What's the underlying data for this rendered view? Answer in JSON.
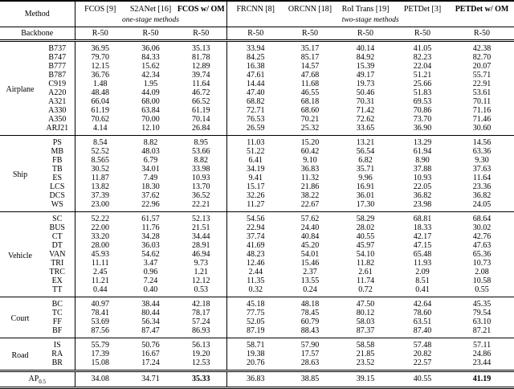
{
  "table": {
    "header": {
      "method_label": "Method",
      "backbone_label": "Backbone",
      "columns": [
        {
          "label": "FCOS [9]",
          "bold": false
        },
        {
          "label": "S2ANet [16]",
          "bold": false
        },
        {
          "label": "FCOS w/ OM",
          "bold": true
        },
        {
          "label": "FRCNN [8]",
          "bold": false
        },
        {
          "label": "ORCNN [18]",
          "bold": false
        },
        {
          "label": "RoI Trans [19]",
          "bold": false
        },
        {
          "label": "PETDet [3]",
          "bold": false
        },
        {
          "label": "PETDet w/ OM",
          "bold": true
        }
      ],
      "stage_notes": [
        {
          "label": "one-stage methods",
          "span": 3
        },
        {
          "label": "two-stage methods",
          "span": 5
        }
      ],
      "backbones": [
        "R-50",
        "R-50",
        "R-50",
        "R-50",
        "R-50",
        "R-50",
        "R-50",
        "R-50"
      ]
    },
    "sections": [
      {
        "group": "Airplane",
        "rows": [
          {
            "class": "B737",
            "values": [
              "36.95",
              "36.06",
              "35.13",
              "33.94",
              "35.17",
              "40.14",
              "41.05",
              "42.38"
            ]
          },
          {
            "class": "B747",
            "values": [
              "79.70",
              "84.33",
              "81.78",
              "84.25",
              "85.17",
              "84.92",
              "82.23",
              "82.70"
            ]
          },
          {
            "class": "B777",
            "values": [
              "12.15",
              "15.62",
              "12.89",
              "16.38",
              "14.57",
              "15.39",
              "22.04",
              "20.07"
            ]
          },
          {
            "class": "B787",
            "values": [
              "36.76",
              "42.34",
              "39.74",
              "47.61",
              "47.68",
              "49.17",
              "51.21",
              "55.71"
            ]
          },
          {
            "class": "C919",
            "values": [
              "1.48",
              "1.95",
              "11.64",
              "14.44",
              "11.68",
              "19.73",
              "25.66",
              "22.91"
            ]
          },
          {
            "class": "A220",
            "values": [
              "48.48",
              "44.09",
              "46.72",
              "47.40",
              "46.55",
              "50.46",
              "51.83",
              "53.61"
            ]
          },
          {
            "class": "A321",
            "values": [
              "66.04",
              "68.00",
              "66.52",
              "68.82",
              "68.18",
              "70.31",
              "69.53",
              "70.11"
            ]
          },
          {
            "class": "A330",
            "values": [
              "61.19",
              "63.84",
              "61.19",
              "72.71",
              "68.60",
              "71.42",
              "70.86",
              "71.16"
            ]
          },
          {
            "class": "A350",
            "values": [
              "70.62",
              "70.00",
              "70.14",
              "76.53",
              "70.21",
              "72.62",
              "73.70",
              "71.46"
            ]
          },
          {
            "class": "ARJ21",
            "values": [
              "4.14",
              "12.10",
              "26.84",
              "26.59",
              "25.32",
              "33.65",
              "36.90",
              "30.60"
            ]
          }
        ]
      },
      {
        "group": "Ship",
        "rows": [
          {
            "class": "PS",
            "values": [
              "8.54",
              "8.82",
              "8.95",
              "11.03",
              "15.20",
              "13.21",
              "13.29",
              "14.56"
            ]
          },
          {
            "class": "MB",
            "values": [
              "52.52",
              "48.03",
              "53.66",
              "51.22",
              "60.42",
              "56.54",
              "61.94",
              "63.36"
            ]
          },
          {
            "class": "FB",
            "values": [
              "8.565",
              "6.79",
              "8.82",
              "6.41",
              "9.10",
              "6.82",
              "8.90",
              "9.30"
            ]
          },
          {
            "class": "TB",
            "values": [
              "30.52",
              "34.01",
              "33.98",
              "34.19",
              "36.83",
              "35.71",
              "37.88",
              "37.63"
            ]
          },
          {
            "class": "ES",
            "values": [
              "11.87",
              "7.49",
              "10.93",
              "9.41",
              "11.32",
              "9.96",
              "10.93",
              "11.64"
            ]
          },
          {
            "class": "LCS",
            "values": [
              "13.82",
              "18.30",
              "13.70",
              "15.17",
              "21.86",
              "16.91",
              "22.05",
              "23.36"
            ]
          },
          {
            "class": "DCS",
            "values": [
              "37.39",
              "37.62",
              "36.52",
              "32.26",
              "38.22",
              "36.01",
              "36.82",
              "36.82"
            ]
          },
          {
            "class": "WS",
            "values": [
              "23.00",
              "22.96",
              "22.21",
              "11.27",
              "22.67",
              "17.30",
              "23.98",
              "24.05"
            ]
          }
        ]
      },
      {
        "group": "Vehicle",
        "rows": [
          {
            "class": "SC",
            "values": [
              "52.22",
              "61.57",
              "52.13",
              "54.56",
              "57.62",
              "58.29",
              "68.81",
              "68.64"
            ]
          },
          {
            "class": "BUS",
            "values": [
              "22.00",
              "11.76",
              "21.51",
              "22.94",
              "24.40",
              "28.02",
              "18.33",
              "30.02"
            ]
          },
          {
            "class": "CT",
            "values": [
              "33.20",
              "34.28",
              "34.44",
              "37.74",
              "40.84",
              "40.55",
              "42.17",
              "42.76"
            ]
          },
          {
            "class": "DT",
            "values": [
              "28.00",
              "36.03",
              "28.91",
              "41.69",
              "45.20",
              "45.97",
              "47.15",
              "47.63"
            ]
          },
          {
            "class": "VAN",
            "values": [
              "45.93",
              "54.62",
              "46.94",
              "48.23",
              "54.01",
              "54.10",
              "65.48",
              "65.36"
            ]
          },
          {
            "class": "TRI",
            "values": [
              "11.11",
              "3.47",
              "9.73",
              "12.46",
              "15.46",
              "11.82",
              "11.93",
              "10.73"
            ]
          },
          {
            "class": "TRC",
            "values": [
              "2.45",
              "0.96",
              "1.21",
              "2.44",
              "2.37",
              "2.61",
              "2.09",
              "2.08"
            ]
          },
          {
            "class": "EX",
            "values": [
              "11.21",
              "7.24",
              "12.12",
              "11.35",
              "13.55",
              "11.74",
              "8.51",
              "10.58"
            ]
          },
          {
            "class": "TT",
            "values": [
              "0.44",
              "0.40",
              "0.53",
              "0.32",
              "0.24",
              "0.72",
              "0.41",
              "0.55"
            ]
          }
        ]
      },
      {
        "group": "Court",
        "rows": [
          {
            "class": "BC",
            "values": [
              "40.97",
              "38.44",
              "42.18",
              "45.18",
              "48.18",
              "47.50",
              "42.64",
              "45.35"
            ]
          },
          {
            "class": "TC",
            "values": [
              "78.41",
              "80.44",
              "78.17",
              "77.75",
              "78.45",
              "80.12",
              "78.60",
              "79.54"
            ]
          },
          {
            "class": "FF",
            "values": [
              "53.69",
              "56.34",
              "57.24",
              "52.05",
              "60.79",
              "58.03",
              "63.51",
              "63.10"
            ]
          },
          {
            "class": "BF",
            "values": [
              "87.56",
              "87.47",
              "86.93",
              "87.19",
              "88.43",
              "87.37",
              "87.40",
              "87.21"
            ]
          }
        ]
      },
      {
        "group": "Road",
        "rows": [
          {
            "class": "IS",
            "values": [
              "55.79",
              "50.76",
              "56.13",
              "58.71",
              "57.90",
              "58.58",
              "57.48",
              "57.11"
            ]
          },
          {
            "class": "RA",
            "values": [
              "17.39",
              "16.67",
              "19.20",
              "19.38",
              "17.57",
              "21.85",
              "20.82",
              "24.86"
            ]
          },
          {
            "class": "BR",
            "values": [
              "15.08",
              "17.24",
              "12.53",
              "20.76",
              "28.63",
              "23.52",
              "22.57",
              "23.44"
            ]
          }
        ]
      }
    ],
    "footer": {
      "label_main": "AP",
      "label_sub": "0.5",
      "values": [
        "34.08",
        "34.71",
        "35.33",
        "36.83",
        "38.85",
        "39.15",
        "40.55",
        "41.19"
      ],
      "bold_indices": [
        2,
        7
      ]
    }
  }
}
